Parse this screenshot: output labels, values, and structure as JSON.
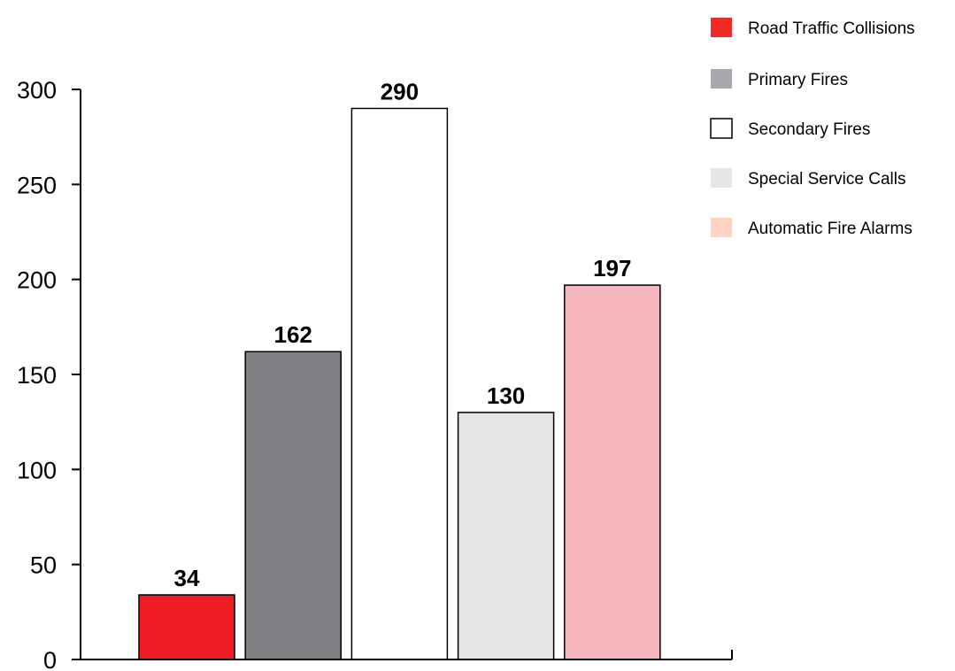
{
  "chart_data": {
    "type": "bar",
    "title": "",
    "xlabel": "",
    "ylabel": "",
    "ylim": [
      0,
      300
    ],
    "yticks": [
      0,
      50,
      100,
      150,
      200,
      250,
      300
    ],
    "grid": false,
    "legend_position": "top-right",
    "categories": [
      "Road Traffic Collisions",
      "Primary Fires",
      "Secondary Fires",
      "Special Service Calls",
      "Automatic Fire Alarms"
    ],
    "values": [
      34,
      162,
      290,
      130,
      197
    ],
    "bar_colors": [
      "#ee1d23",
      "#808184",
      "#ffffff",
      "#e5e6e8",
      "#f6b6bd"
    ],
    "legend": [
      {
        "label": "Road Traffic Collisions",
        "color": "#ee2a24"
      },
      {
        "label": "Primary Fires",
        "color": "#a8a9ad"
      },
      {
        "label": "Secondary Fires",
        "color": "#ffffff"
      },
      {
        "label": "Special Service Calls",
        "color": "#e5e6e8"
      },
      {
        "label": "Automatic Fire Alarms",
        "color": "#fdd4c2"
      }
    ]
  }
}
